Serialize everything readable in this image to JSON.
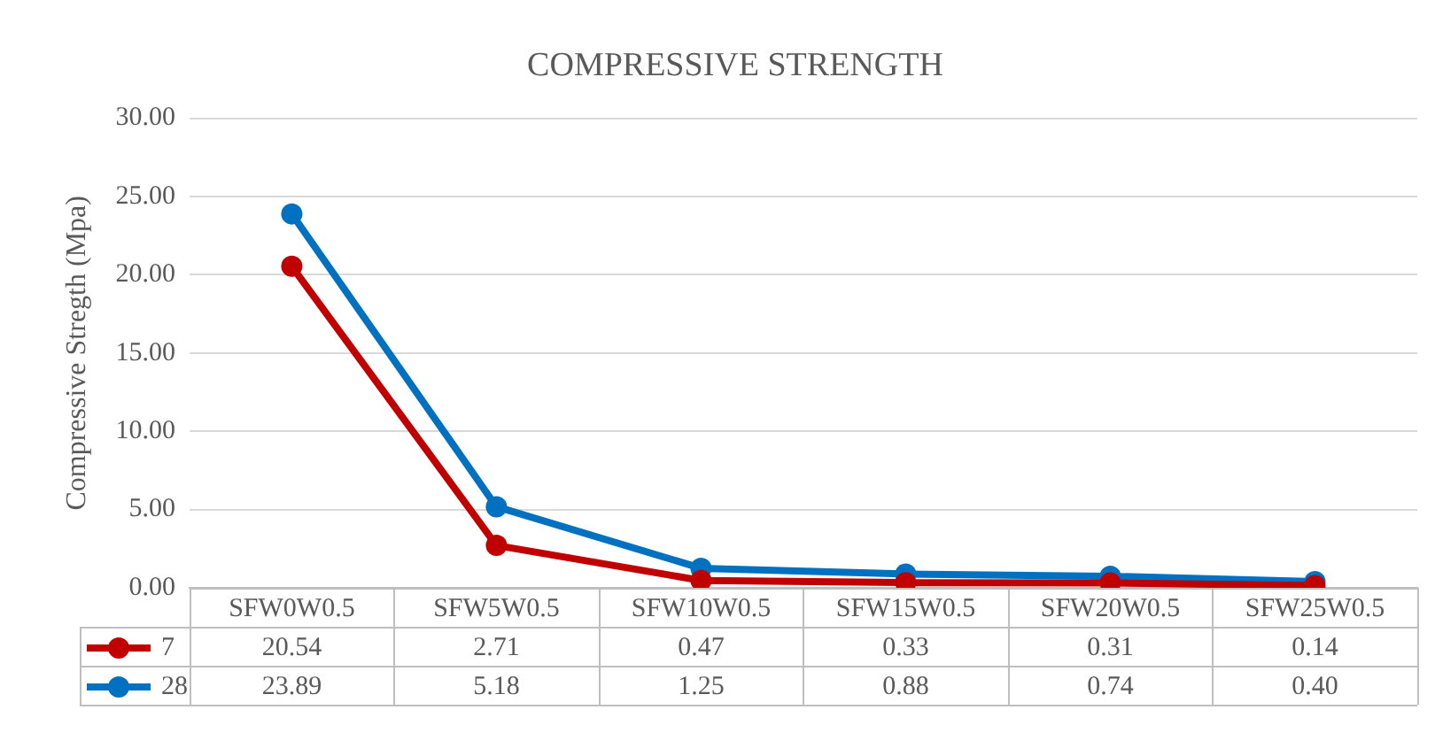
{
  "chart_data": {
    "type": "line",
    "title": "COMPRESSIVE STRENGTH",
    "ylabel": "Compressive Stregth (Mpa)",
    "categories": [
      "SFW0W0.5",
      "SFW5W0.5",
      "SFW10W0.5",
      "SFW15W0.5",
      "SFW20W0.5",
      "SFW25W0.5"
    ],
    "series": [
      {
        "name": "7",
        "color": "#c00000",
        "values": [
          20.54,
          2.71,
          0.47,
          0.33,
          0.31,
          0.14
        ],
        "value_labels": [
          "20.54",
          "2.71",
          "0.47",
          "0.33",
          "0.31",
          "0.14"
        ]
      },
      {
        "name": "28",
        "color": "#0070c0",
        "values": [
          23.89,
          5.18,
          1.25,
          0.88,
          0.74,
          0.4
        ],
        "value_labels": [
          "23.89",
          "5.18",
          "1.25",
          "0.88",
          "0.74",
          "0.40"
        ]
      }
    ],
    "ylim": [
      0,
      30
    ],
    "yticks": [
      {
        "value": 0,
        "label": "0.00"
      },
      {
        "value": 5,
        "label": "5.00"
      },
      {
        "value": 10,
        "label": "10.00"
      },
      {
        "value": 15,
        "label": "15.00"
      },
      {
        "value": 20,
        "label": "20.00"
      },
      {
        "value": 25,
        "label": "25.00"
      },
      {
        "value": 30,
        "label": "30.00"
      }
    ],
    "grid": "y",
    "legend": "bottom",
    "marker": "circle",
    "line_style": "solid"
  }
}
